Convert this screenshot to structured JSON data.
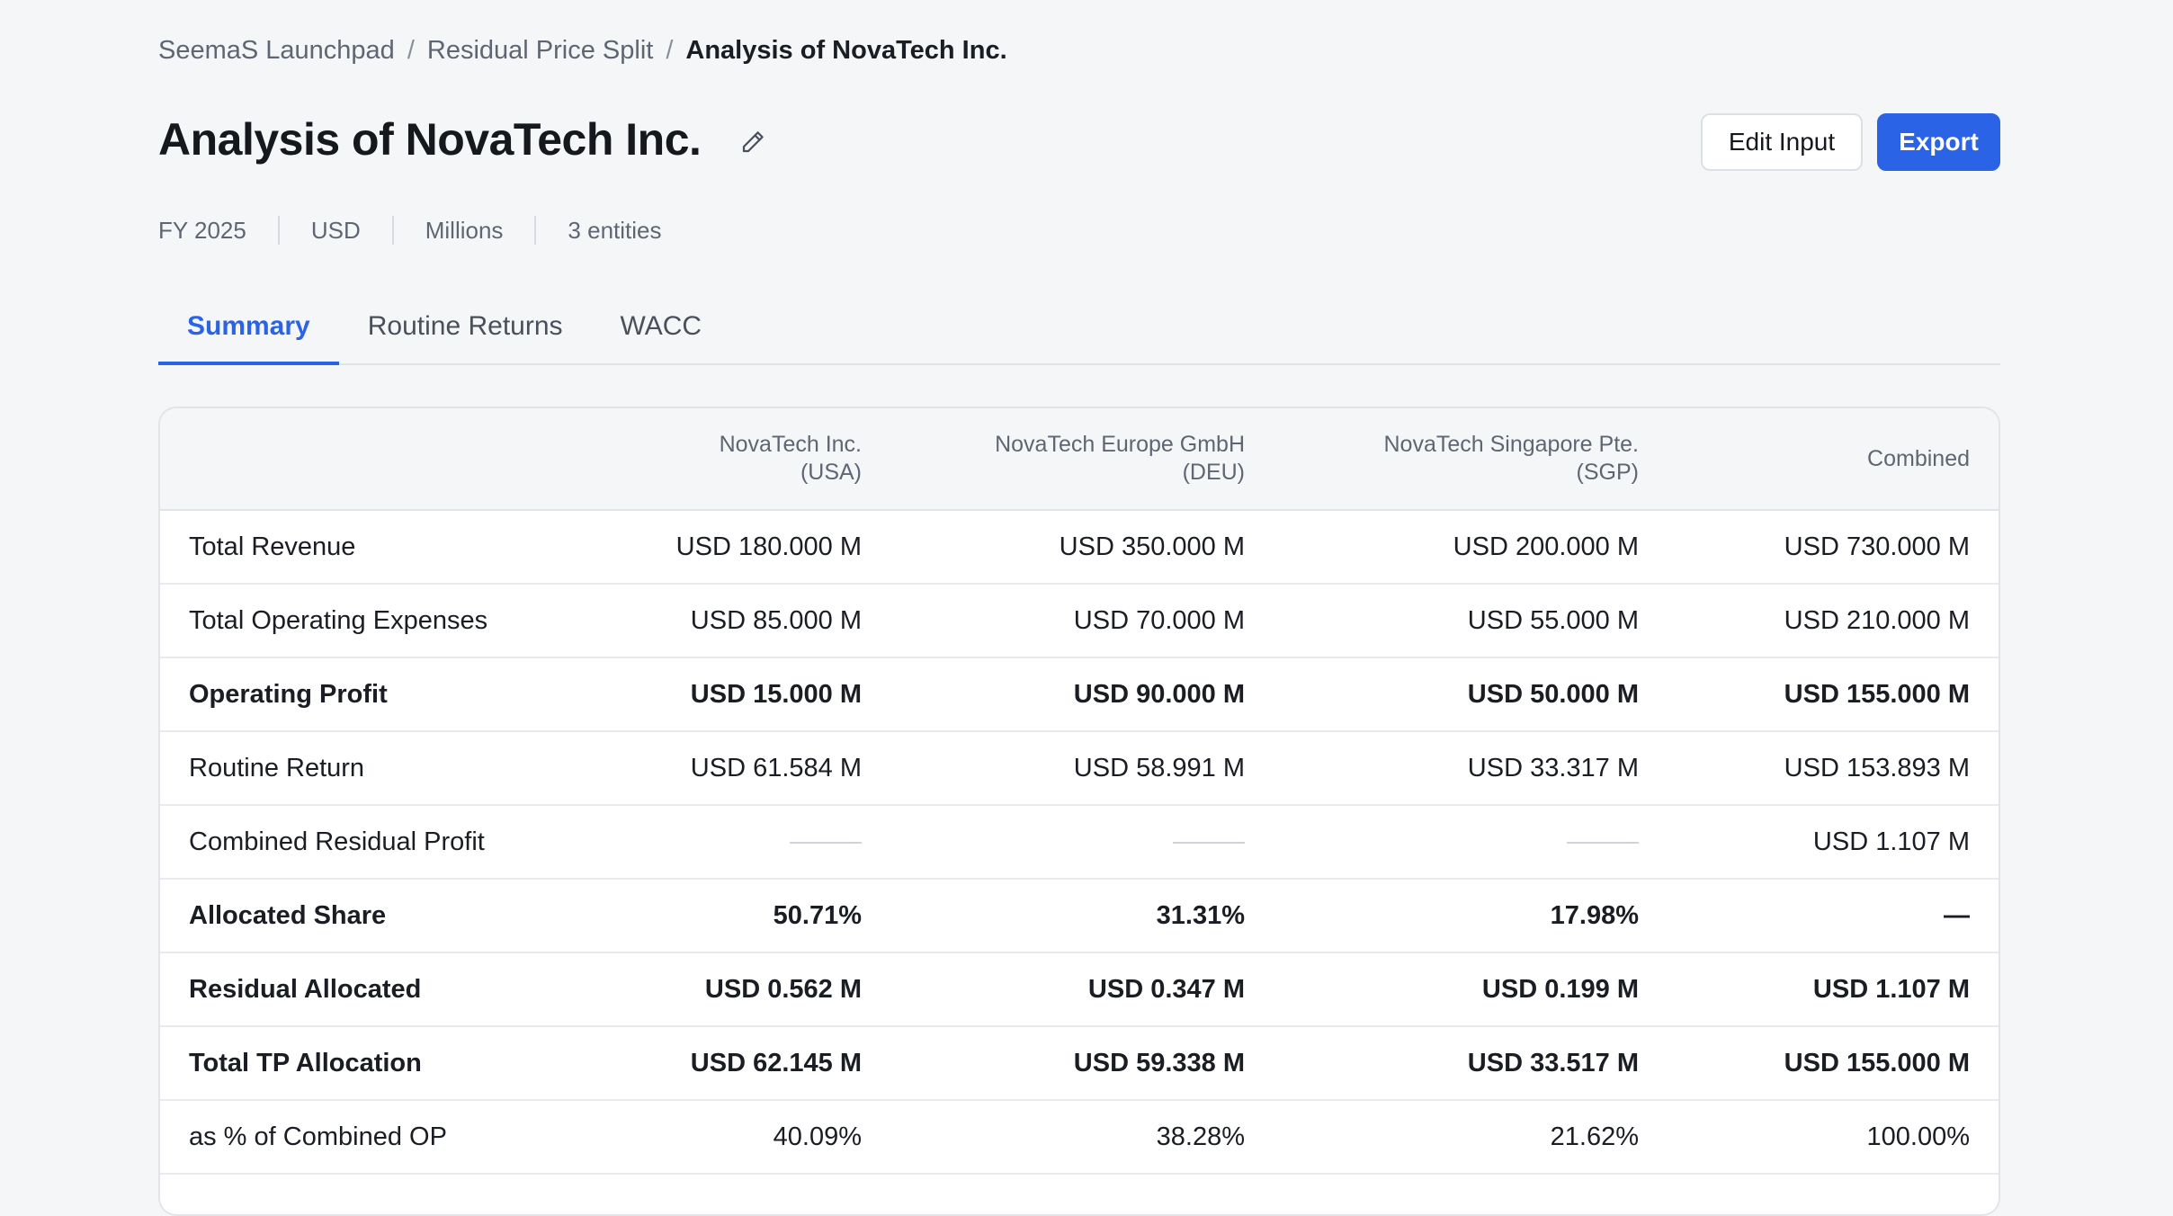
{
  "breadcrumb": {
    "items": [
      "SeemaS Launchpad",
      "Residual Price Split"
    ],
    "current": "Analysis of NovaTech Inc.",
    "separator": "/"
  },
  "header": {
    "title": "Analysis of NovaTech Inc.",
    "edit_icon": "pencil-icon",
    "edit_input_label": "Edit Input",
    "export_label": "Export"
  },
  "meta": {
    "fiscal_year": "FY 2025",
    "currency": "USD",
    "unit": "Millions",
    "entities": "3 entities"
  },
  "tabs": [
    {
      "label": "Summary",
      "active": true
    },
    {
      "label": "Routine Returns",
      "active": false
    },
    {
      "label": "WACC",
      "active": false
    }
  ],
  "table": {
    "columns": [
      {
        "name": "NovaTech Inc.",
        "sub": "(USA)"
      },
      {
        "name": "NovaTech Europe GmbH",
        "sub": "(DEU)"
      },
      {
        "name": "NovaTech Singapore Pte.",
        "sub": "(SGP)"
      },
      {
        "name": "Combined",
        "sub": ""
      }
    ],
    "rows": [
      {
        "label": "Total Revenue",
        "bold": false,
        "values": [
          "USD 180.000 M",
          "USD 350.000 M",
          "USD 200.000 M",
          "USD 730.000 M"
        ]
      },
      {
        "label": "Total Operating Expenses",
        "bold": false,
        "values": [
          "USD 85.000 M",
          "USD 70.000 M",
          "USD 55.000 M",
          "USD 210.000 M"
        ]
      },
      {
        "label": "Operating Profit",
        "bold": true,
        "values": [
          "USD 15.000 M",
          "USD 90.000 M",
          "USD 50.000 M",
          "USD 155.000 M"
        ]
      },
      {
        "label": "Routine Return",
        "bold": false,
        "values": [
          "USD 61.584 M",
          "USD 58.991 M",
          "USD 33.317 M",
          "USD 153.893 M"
        ]
      },
      {
        "label": "Combined Residual Profit",
        "bold": false,
        "values": [
          "",
          "",
          "",
          "USD 1.107 M"
        ]
      },
      {
        "label": "Allocated Share",
        "bold": true,
        "values": [
          "50.71%",
          "31.31%",
          "17.98%",
          "—"
        ]
      },
      {
        "label": "Residual Allocated",
        "bold": true,
        "values": [
          "USD 0.562 M",
          "USD 0.347 M",
          "USD 0.199 M",
          "USD 1.107 M"
        ]
      },
      {
        "label": "Total TP Allocation",
        "bold": true,
        "values": [
          "USD 62.145 M",
          "USD 59.338 M",
          "USD 33.517 M",
          "USD 155.000 M"
        ]
      },
      {
        "label": "as % of Combined OP",
        "bold": false,
        "values": [
          "40.09%",
          "38.28%",
          "21.62%",
          "100.00%"
        ]
      }
    ]
  },
  "colors": {
    "accent": "#2a63e6",
    "background": "#f5f6f8",
    "text": "#1a1d23",
    "muted": "#5f6673"
  }
}
